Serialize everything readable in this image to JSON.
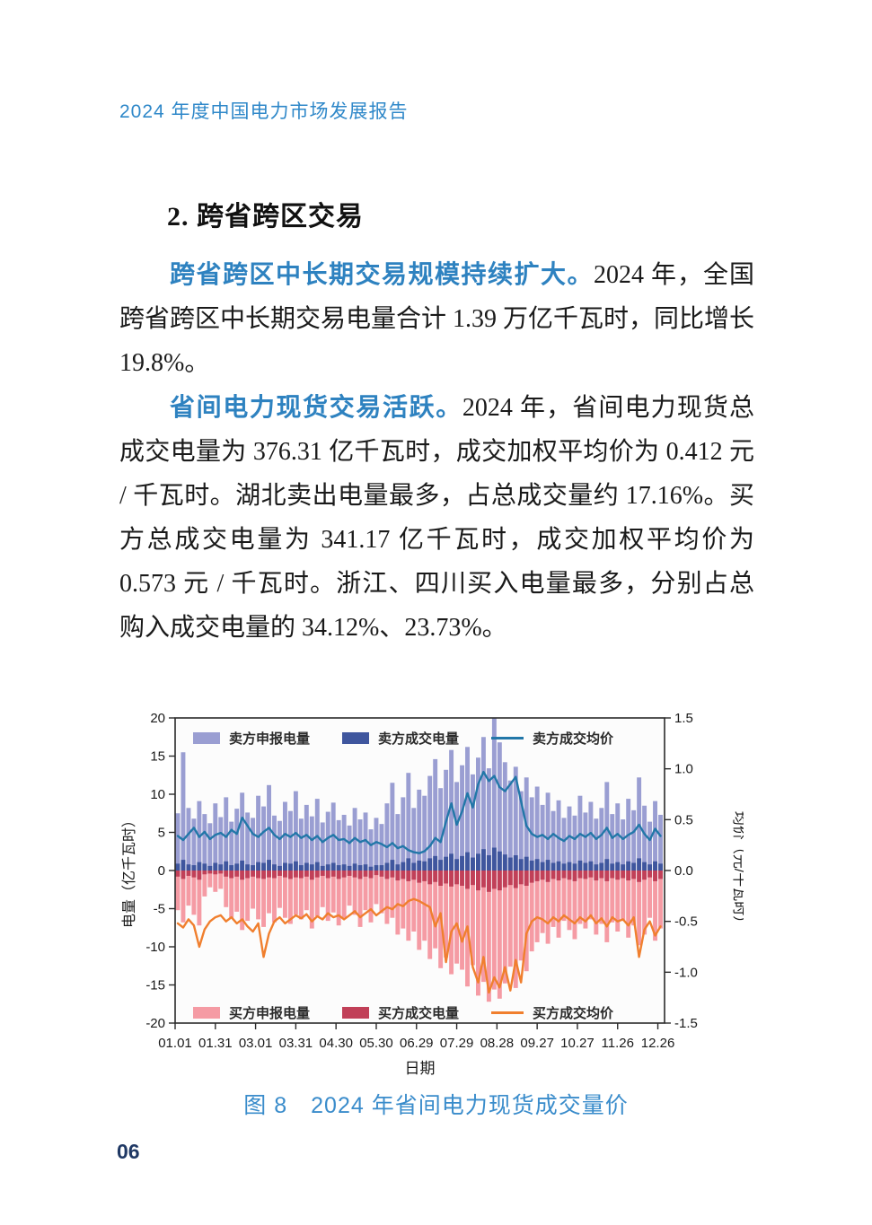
{
  "page": {
    "header": "2024 年度中国电力市场发展报告",
    "page_number": "06"
  },
  "section": {
    "heading": "2. 跨省跨区交易"
  },
  "paragraphs": [
    {
      "lead": "跨省跨区中长期交易规模持续扩大。",
      "body": "2024 年，全国跨省跨区中长期交易电量合计 1.39 万亿千瓦时，同比增长 19.8%。"
    },
    {
      "lead": "省间电力现货交易活跃。",
      "body": "2024 年，省间电力现货总成交电量为 376.31 亿千瓦时，成交加权平均价为 0.412 元 / 千瓦时。湖北卖出电量最多，占总成交量约 17.16%。买方总成交电量为 341.17 亿千瓦时，成交加权平均价为 0.573 元 / 千瓦时。浙江、四川买入电量最多，分别占总购入成交电量的 34.12%、23.73%。"
    }
  ],
  "figure": {
    "caption": "图 8　2024 年省间电力现货成交量价"
  },
  "colors": {
    "accent_blue": "#2f88c9",
    "lead_blue": "#2e82c0",
    "caption_blue": "#3a8ccb",
    "page_number_navy": "#1f3864"
  },
  "chart_data": {
    "type": "bar",
    "subtype": "dual-axis daily bars with price lines",
    "title": "",
    "xlabel": "日期",
    "ylabel_left": "电量（亿千瓦时）",
    "ylabel_right": "均价（元/千瓦时）",
    "ylim_left": [
      -20,
      20
    ],
    "ylim_right": [
      -1.5,
      1.5
    ],
    "yticks_left": [
      "20",
      "15",
      "10",
      "5",
      "0",
      "-5",
      "-10",
      "-15",
      "-20"
    ],
    "yticks_right": [
      "1.5",
      "1.0",
      "0.5",
      "0.0",
      "-0.5",
      "-1.0",
      "-1.5"
    ],
    "xticks": [
      "01.01",
      "01.31",
      "03.01",
      "03.31",
      "04.30",
      "05.30",
      "06.29",
      "07.29",
      "08.28",
      "09.27",
      "10.27",
      "11.26",
      "12.26"
    ],
    "grid": false,
    "legend_position": "top-left and bottom-left inside plot",
    "sample_interval_days": 4,
    "series": [
      {
        "name": "卖方申报电量",
        "type": "bar",
        "axis": "left",
        "color": "#9a9ed2",
        "values": [
          7.5,
          15.5,
          8.2,
          6.8,
          9.1,
          7.4,
          6.2,
          8.8,
          7.0,
          9.6,
          6.4,
          8.1,
          10.2,
          7.6,
          6.9,
          9.8,
          8.4,
          11.2,
          7.2,
          6.5,
          9.0,
          7.8,
          10.4,
          6.8,
          8.6,
          7.1,
          9.4,
          6.3,
          7.7,
          8.9,
          6.6,
          7.3,
          5.9,
          8.2,
          6.7,
          7.6,
          5.4,
          6.9,
          6.1,
          8.8,
          11.5,
          7.4,
          9.6,
          12.8,
          8.2,
          10.6,
          9.8,
          12.4,
          14.6,
          10.8,
          13.2,
          15.8,
          11.6,
          13.8,
          16.2,
          12.6,
          14.8,
          17.5,
          13.4,
          20.0,
          16.8,
          14.2,
          11.8,
          13.6,
          10.4,
          12.2,
          9.6,
          11.0,
          8.6,
          10.2,
          7.8,
          9.2,
          6.9,
          8.4,
          7.2,
          9.8,
          7.6,
          9.0,
          6.8,
          8.2,
          11.6,
          7.4,
          8.8,
          6.7,
          9.4,
          7.9,
          12.2,
          8.5,
          6.4,
          9.1,
          7.3
        ]
      },
      {
        "name": "卖方成交电量",
        "type": "bar",
        "axis": "left",
        "color": "#3f569e",
        "values": [
          0.9,
          1.4,
          0.8,
          0.7,
          1.1,
          0.9,
          0.6,
          1.0,
          0.8,
          1.2,
          0.7,
          0.9,
          1.3,
          0.8,
          0.7,
          1.1,
          1.0,
          1.4,
          0.8,
          0.6,
          1.0,
          0.9,
          1.2,
          0.7,
          1.0,
          0.8,
          1.1,
          0.6,
          0.8,
          1.0,
          0.7,
          0.8,
          0.6,
          0.9,
          0.7,
          0.8,
          0.5,
          0.7,
          0.7,
          1.0,
          1.4,
          0.8,
          1.1,
          1.6,
          1.0,
          1.3,
          1.2,
          1.6,
          1.9,
          1.4,
          1.8,
          2.2,
          1.5,
          1.9,
          2.4,
          1.7,
          2.2,
          2.8,
          2.0,
          3.0,
          2.5,
          2.1,
          1.7,
          2.0,
          1.5,
          1.8,
          1.3,
          1.5,
          1.1,
          1.4,
          1.0,
          1.2,
          0.9,
          1.1,
          0.9,
          1.3,
          1.0,
          1.2,
          0.8,
          1.0,
          1.5,
          0.9,
          1.1,
          0.8,
          1.2,
          1.0,
          1.6,
          1.1,
          0.8,
          1.2,
          0.9
        ]
      },
      {
        "name": "买方申报电量",
        "type": "bar",
        "axis": "left",
        "color": "#f59ba4",
        "values": [
          -5.2,
          -6.8,
          -4.6,
          -5.8,
          -7.2,
          -3.4,
          -2.2,
          -2.8,
          -2.4,
          -4.8,
          -6.2,
          -5.4,
          -7.8,
          -6.6,
          -5.0,
          -6.4,
          -7.4,
          -5.6,
          -6.8,
          -4.9,
          -6.2,
          -7.0,
          -5.8,
          -6.4,
          -5.2,
          -7.6,
          -6.0,
          -4.8,
          -6.6,
          -5.5,
          -7.2,
          -6.2,
          -4.6,
          -5.8,
          -7.4,
          -5.2,
          -6.8,
          -4.4,
          -5.6,
          -7.0,
          -6.2,
          -8.4,
          -7.6,
          -9.2,
          -8.0,
          -10.4,
          -9.2,
          -11.6,
          -10.2,
          -12.8,
          -11.4,
          -13.6,
          -12.2,
          -13.0,
          -15.2,
          -12.4,
          -16.4,
          -14.6,
          -17.2,
          -15.6,
          -16.8,
          -14.8,
          -12.6,
          -15.4,
          -11.8,
          -13.2,
          -10.6,
          -9.4,
          -8.2,
          -9.6,
          -7.4,
          -8.8,
          -6.6,
          -7.8,
          -9.0,
          -7.0,
          -7.6,
          -6.4,
          -8.4,
          -7.0,
          -9.4,
          -6.8,
          -8.0,
          -6.6,
          -8.8,
          -7.2,
          -9.8,
          -8.4,
          -6.2,
          -9.2,
          -7.6
        ]
      },
      {
        "name": "买方成交电量",
        "type": "bar",
        "axis": "left",
        "color": "#c14058",
        "values": [
          -0.8,
          -1.1,
          -0.7,
          -0.9,
          -1.2,
          -0.5,
          -0.4,
          -0.5,
          -0.4,
          -0.8,
          -1.0,
          -0.8,
          -1.2,
          -1.0,
          -0.8,
          -1.0,
          -1.1,
          -0.9,
          -1.0,
          -0.7,
          -0.9,
          -1.1,
          -0.9,
          -1.0,
          -0.8,
          -1.2,
          -0.9,
          -0.7,
          -1.0,
          -0.8,
          -1.1,
          -0.9,
          -0.7,
          -0.9,
          -1.1,
          -0.8,
          -1.0,
          -0.6,
          -0.8,
          -1.1,
          -0.9,
          -1.3,
          -1.1,
          -1.4,
          -1.2,
          -1.6,
          -1.4,
          -1.8,
          -1.5,
          -2.0,
          -1.7,
          -2.1,
          -1.8,
          -2.0,
          -2.4,
          -1.9,
          -2.6,
          -2.2,
          -2.8,
          -2.4,
          -2.6,
          -2.2,
          -1.9,
          -2.3,
          -1.8,
          -2.0,
          -1.6,
          -1.4,
          -1.2,
          -1.5,
          -1.1,
          -1.3,
          -1.0,
          -1.2,
          -1.4,
          -1.0,
          -1.1,
          -0.9,
          -1.3,
          -1.0,
          -1.4,
          -1.0,
          -1.2,
          -1.0,
          -1.3,
          -1.1,
          -1.5,
          -1.2,
          -0.9,
          -1.4,
          -1.1
        ]
      },
      {
        "name": "卖方成交均价",
        "type": "line",
        "axis": "right",
        "color": "#2277a8",
        "values": [
          0.34,
          0.3,
          0.36,
          0.42,
          0.33,
          0.38,
          0.31,
          0.35,
          0.37,
          0.33,
          0.4,
          0.36,
          0.52,
          0.44,
          0.36,
          0.33,
          0.38,
          0.42,
          0.35,
          0.31,
          0.36,
          0.33,
          0.37,
          0.32,
          0.35,
          0.3,
          0.34,
          0.28,
          0.32,
          0.35,
          0.3,
          0.31,
          0.27,
          0.32,
          0.28,
          0.3,
          0.25,
          0.28,
          0.26,
          0.23,
          0.27,
          0.22,
          0.24,
          0.2,
          0.18,
          0.17,
          0.19,
          0.24,
          0.32,
          0.28,
          0.48,
          0.66,
          0.45,
          0.58,
          0.76,
          0.62,
          0.85,
          0.97,
          0.88,
          0.93,
          0.82,
          0.78,
          0.85,
          0.92,
          0.68,
          0.44,
          0.36,
          0.33,
          0.35,
          0.31,
          0.36,
          0.32,
          0.29,
          0.34,
          0.31,
          0.36,
          0.33,
          0.37,
          0.31,
          0.35,
          0.42,
          0.32,
          0.36,
          0.31,
          0.35,
          0.38,
          0.45,
          0.36,
          0.3,
          0.41,
          0.34
        ]
      },
      {
        "name": "买方成交均价",
        "type": "line",
        "axis": "right",
        "color": "#f07f2e",
        "values": [
          -0.52,
          -0.56,
          -0.48,
          -0.54,
          -0.75,
          -0.58,
          -0.5,
          -0.46,
          -0.44,
          -0.5,
          -0.46,
          -0.52,
          -0.48,
          -0.55,
          -0.6,
          -0.52,
          -0.85,
          -0.62,
          -0.5,
          -0.46,
          -0.52,
          -0.48,
          -0.44,
          -0.47,
          -0.43,
          -0.5,
          -0.45,
          -0.48,
          -0.42,
          -0.46,
          -0.44,
          -0.48,
          -0.44,
          -0.4,
          -0.46,
          -0.42,
          -0.38,
          -0.44,
          -0.4,
          -0.36,
          -0.38,
          -0.33,
          -0.35,
          -0.3,
          -0.28,
          -0.3,
          -0.33,
          -0.36,
          -0.55,
          -0.42,
          -0.9,
          -0.6,
          -0.52,
          -0.7,
          -0.55,
          -0.95,
          -1.1,
          -0.85,
          -1.2,
          -1.05,
          -1.15,
          -0.95,
          -1.18,
          -0.88,
          -1.1,
          -0.62,
          -0.5,
          -0.46,
          -0.48,
          -0.52,
          -0.46,
          -0.5,
          -0.44,
          -0.48,
          -0.52,
          -0.46,
          -0.5,
          -0.44,
          -0.52,
          -0.47,
          -0.55,
          -0.46,
          -0.5,
          -0.48,
          -0.54,
          -0.46,
          -0.85,
          -0.58,
          -0.5,
          -0.64,
          -0.55
        ]
      }
    ],
    "legend_top": [
      "卖方申报电量",
      "卖方成交电量",
      "卖方成交均价"
    ],
    "legend_bottom": [
      "买方申报电量",
      "买方成交电量",
      "买方成交均价"
    ]
  }
}
